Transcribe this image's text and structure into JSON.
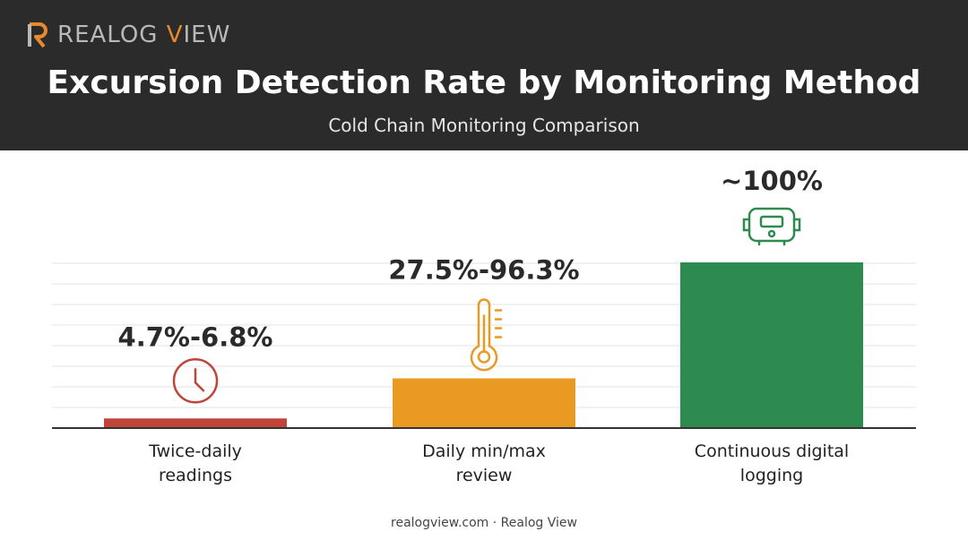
{
  "brand": {
    "logo_text": "REALOG VIEW",
    "logo_color": "#e8892b"
  },
  "header": {
    "title": "Excursion Detection Rate by Monitoring Method",
    "subtitle": "Cold Chain Monitoring Comparison"
  },
  "footer": {
    "text": "realogview.com · Realog View"
  },
  "chart_data": {
    "type": "bar",
    "title": "Excursion Detection Rate by Monitoring Method",
    "subtitle": "Cold Chain Monitoring Comparison",
    "categories": [
      [
        "Twice-daily",
        "readings"
      ],
      [
        "Daily min/max",
        "review"
      ],
      [
        "Continuous digital",
        "logging"
      ]
    ],
    "values": [
      5.8,
      30,
      100
    ],
    "value_labels": [
      "4.7%-6.8%",
      "27.5%-96.3%",
      "~100%"
    ],
    "colors": [
      "#c0443a",
      "#e99a22",
      "#2e8b4f"
    ],
    "icons": [
      "clock-icon",
      "thermometer-icon",
      "data-logger-icon"
    ],
    "ylim": [
      0,
      100
    ],
    "grid": true,
    "legend": "none"
  }
}
